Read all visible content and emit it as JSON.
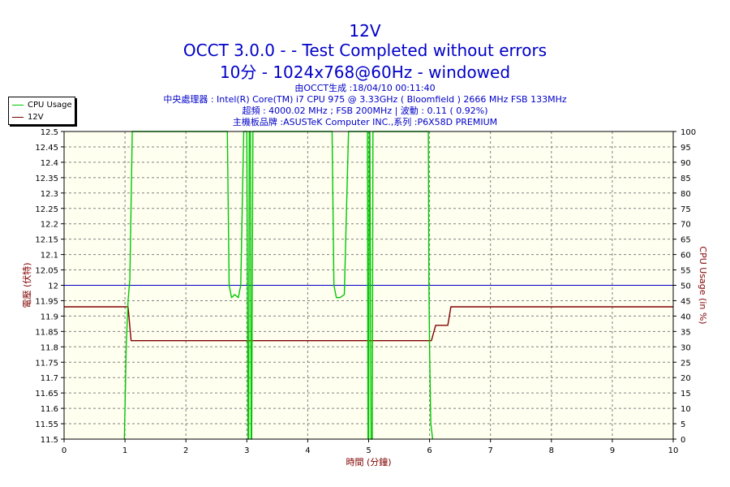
{
  "titles": {
    "main": "12V",
    "subtitle": "OCCT 3.0.0 -  - Test Completed without errors",
    "config": "10分 - 1024x768@60Hz - windowed"
  },
  "info_lines": [
    "由OCCT生成 :18/04/10 00:11:40",
    "中央處理器 : Intel(R) Core(TM) i7 CPU 975 @ 3.33GHz ( Bloomfield ) 2666 MHz FSB 133MHz",
    "超頻 : 4000.02 MHz ; FSB 200MHz | 波動 : 0.11 ( 0.92%)",
    "主機板品牌 :ASUSTeK Computer INC.,系列 :P6X58D PREMIUM"
  ],
  "legend": [
    {
      "label": "CPU Usage",
      "color": "#00c800"
    },
    {
      "label": "12V",
      "color": "#800000"
    }
  ],
  "chart_data": {
    "type": "line",
    "xlabel": "時間 (分鐘)",
    "ylabel_left": "電壓 (伏特)",
    "ylabel_right": "CPU Usage (in %)",
    "xlim": [
      0,
      10
    ],
    "ylim_left": [
      11.5,
      12.5
    ],
    "ylim_right": [
      0,
      100
    ],
    "x_ticks": [
      "0",
      "1",
      "2",
      "3",
      "4",
      "5",
      "6",
      "7",
      "8",
      "9",
      "10"
    ],
    "y_left_ticks": [
      "11.5",
      "11.55",
      "11.6",
      "11.65",
      "11.7",
      "11.75",
      "11.8",
      "11.85",
      "11.9",
      "11.95",
      "12",
      "12.05",
      "12.1",
      "12.15",
      "12.2",
      "12.25",
      "12.3",
      "12.35",
      "12.4",
      "12.45",
      "12.5"
    ],
    "y_right_ticks": [
      "0",
      "5",
      "10",
      "15",
      "20",
      "25",
      "30",
      "35",
      "40",
      "45",
      "50",
      "55",
      "60",
      "65",
      "70",
      "75",
      "80",
      "85",
      "90",
      "95",
      "100"
    ],
    "grid": true,
    "legend_position": "top-left",
    "reference_line": {
      "y": 12.0,
      "color": "#0000c8"
    },
    "series": [
      {
        "name": "12V",
        "axis": "left",
        "color": "#800000",
        "x": [
          0,
          1.05,
          1.1,
          1.8,
          3.0,
          5.0,
          6.0,
          6.03,
          6.1,
          6.3,
          6.35,
          10
        ],
        "y": [
          11.93,
          11.93,
          11.82,
          11.82,
          11.82,
          11.82,
          11.82,
          11.82,
          11.87,
          11.87,
          11.93,
          11.93
        ]
      },
      {
        "name": "CPU Usage",
        "axis": "right",
        "color": "#00c800",
        "x": [
          0.99,
          1.0,
          1.02,
          1.05,
          1.08,
          1.12,
          2.68,
          2.71,
          2.75,
          2.8,
          2.86,
          2.9,
          2.95,
          3.0,
          3.02,
          3.03,
          3.04,
          3.06,
          3.07,
          3.08,
          3.1,
          4.4,
          4.43,
          4.47,
          4.53,
          4.6,
          4.67,
          4.72,
          4.98,
          4.99,
          5.0,
          5.01,
          5.02,
          5.04,
          5.06,
          5.07,
          5.08,
          5.1,
          5.98,
          5.99,
          6.0,
          6.02,
          6.05
        ],
        "y": [
          0,
          10,
          30,
          45,
          52,
          100,
          100,
          50,
          46,
          47,
          46,
          50,
          100,
          100,
          0,
          0,
          100,
          100,
          0,
          0,
          100,
          100,
          50,
          46,
          46,
          47,
          100,
          100,
          100,
          0,
          0,
          100,
          100,
          0,
          0,
          100,
          100,
          100,
          100,
          50,
          30,
          5,
          0
        ]
      }
    ]
  }
}
